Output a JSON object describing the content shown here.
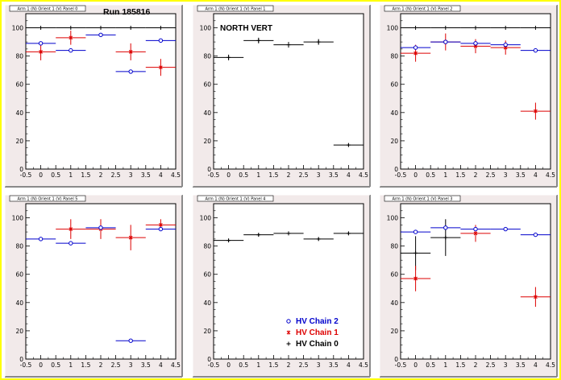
{
  "run_label": "Run 185816",
  "north_vert_label": "NORTH VERT",
  "colors": {
    "chain2": "#0000cc",
    "chain1": "#dd0000",
    "chain0": "#000000",
    "frame_bg": "#f2eaea"
  },
  "legend": [
    {
      "label": "HV Chain 2",
      "key": "chain2"
    },
    {
      "label": "HV Chain 1",
      "key": "chain1"
    },
    {
      "label": "HV Chain 0",
      "key": "chain0"
    }
  ],
  "chart_data": [
    {
      "type": "scatter",
      "title": "Arm 1 (N) Orient 1 (V) Panel 0",
      "xlim": [
        -0.5,
        4.5
      ],
      "ylim": [
        0,
        110
      ],
      "xticks": [
        "-0.5",
        "0",
        "0.5",
        "1",
        "1.5",
        "2",
        "2.5",
        "3",
        "3.5",
        "4",
        "4.5"
      ],
      "yticks": [
        "0",
        "20",
        "40",
        "60",
        "80",
        "100"
      ],
      "series": [
        {
          "key": "chain0",
          "x": [
            0,
            1,
            2,
            3,
            4
          ],
          "y": [
            100,
            100,
            100,
            100,
            100
          ],
          "yerr": [
            0,
            0,
            0,
            0,
            0
          ]
        },
        {
          "key": "chain1",
          "x": [
            0,
            1,
            3,
            4
          ],
          "y": [
            83,
            93,
            83,
            72
          ],
          "yerr": [
            6,
            5,
            6,
            6
          ]
        },
        {
          "key": "chain2",
          "x": [
            0,
            1,
            2,
            3,
            4
          ],
          "y": [
            89,
            84,
            95,
            69,
            91
          ],
          "yerr": [
            0,
            0,
            0,
            0,
            0
          ]
        }
      ]
    },
    {
      "type": "scatter",
      "title": "Arm 1 (N) Orient 1 (V) Panel 1",
      "xlim": [
        -0.5,
        4.5
      ],
      "ylim": [
        0,
        110
      ],
      "xticks": [
        "-0.5",
        "0",
        "0.5",
        "1",
        "1.5",
        "2",
        "2.5",
        "3",
        "3.5",
        "4",
        "4.5"
      ],
      "yticks": [
        "0",
        "20",
        "40",
        "60",
        "80",
        "100"
      ],
      "series": [
        {
          "key": "chain0",
          "x": [
            0,
            1,
            2,
            3,
            4
          ],
          "y": [
            79,
            91,
            88,
            90,
            17
          ],
          "yerr": [
            2,
            2,
            2,
            2,
            1
          ]
        }
      ]
    },
    {
      "type": "scatter",
      "title": "Arm 1 (N) Orient 1 (V) Panel 2",
      "xlim": [
        -0.5,
        4.5
      ],
      "ylim": [
        0,
        110
      ],
      "xticks": [
        "-0.5",
        "0",
        "0.5",
        "1",
        "1.5",
        "2",
        "2.5",
        "3",
        "3.5",
        "4",
        "4.5"
      ],
      "yticks": [
        "0",
        "20",
        "40",
        "60",
        "80",
        "100"
      ],
      "series": [
        {
          "key": "chain0",
          "x": [
            0,
            1,
            2,
            3,
            4
          ],
          "y": [
            100,
            100,
            100,
            100,
            100
          ],
          "yerr": [
            0,
            0,
            0,
            0,
            0
          ]
        },
        {
          "key": "chain1",
          "x": [
            0,
            1,
            2,
            3,
            4
          ],
          "y": [
            82,
            90,
            87,
            86,
            41
          ],
          "yerr": [
            6,
            6,
            5,
            5,
            6
          ]
        },
        {
          "key": "chain2",
          "x": [
            0,
            1,
            2,
            3,
            4
          ],
          "y": [
            86,
            90,
            89,
            88,
            84
          ],
          "yerr": [
            0,
            0,
            0,
            0,
            0
          ]
        }
      ]
    },
    {
      "type": "scatter",
      "title": "Arm 1 (N) Orient 1 (V) Panel 5",
      "xlim": [
        -0.5,
        4.5
      ],
      "ylim": [
        0,
        110
      ],
      "xticks": [
        "-0.5",
        "0",
        "0.5",
        "1",
        "1.5",
        "2",
        "2.5",
        "3",
        "3.5",
        "4",
        "4.5"
      ],
      "yticks": [
        "0",
        "20",
        "40",
        "60",
        "80",
        "100"
      ],
      "series": [
        {
          "key": "chain1",
          "x": [
            1,
            2,
            3,
            4
          ],
          "y": [
            92,
            92,
            86,
            95
          ],
          "yerr": [
            7,
            7,
            9,
            4
          ]
        },
        {
          "key": "chain2",
          "x": [
            0,
            1,
            2,
            3,
            4
          ],
          "y": [
            85,
            82,
            93,
            13,
            92
          ],
          "yerr": [
            0,
            0,
            0,
            0,
            0
          ]
        }
      ]
    },
    {
      "type": "scatter",
      "title": "Arm 1 (N) Orient 1 (V) Panel 4",
      "xlim": [
        -0.5,
        4.5
      ],
      "ylim": [
        0,
        110
      ],
      "xticks": [
        "-0.5",
        "0",
        "0.5",
        "1",
        "1.5",
        "2",
        "2.5",
        "3",
        "3.5",
        "4",
        "4.5"
      ],
      "yticks": [
        "0",
        "20",
        "40",
        "60",
        "80",
        "100"
      ],
      "series": [
        {
          "key": "chain0",
          "x": [
            0,
            1,
            2,
            3,
            4
          ],
          "y": [
            84,
            88,
            89,
            85,
            89
          ],
          "yerr": [
            1,
            1,
            1,
            1,
            1
          ]
        }
      ]
    },
    {
      "type": "scatter",
      "title": "Arm 1 (N) Orient 1 (V) Panel 3",
      "xlim": [
        -0.5,
        4.5
      ],
      "ylim": [
        0,
        110
      ],
      "xticks": [
        "-0.5",
        "0",
        "0.5",
        "1",
        "1.5",
        "2",
        "2.5",
        "3",
        "3.5",
        "4",
        "4.5"
      ],
      "yticks": [
        "0",
        "20",
        "40",
        "60",
        "80",
        "100"
      ],
      "series": [
        {
          "key": "chain0",
          "x": [
            0,
            1
          ],
          "y": [
            75,
            86
          ],
          "yerr": [
            12,
            13
          ]
        },
        {
          "key": "chain1",
          "x": [
            0,
            2,
            4
          ],
          "y": [
            57,
            89,
            44
          ],
          "yerr": [
            9,
            6,
            7
          ]
        },
        {
          "key": "chain2",
          "x": [
            0,
            1,
            2,
            3,
            4
          ],
          "y": [
            90,
            93,
            92,
            92,
            88
          ],
          "yerr": [
            0,
            0,
            0,
            0,
            0
          ]
        }
      ]
    }
  ]
}
